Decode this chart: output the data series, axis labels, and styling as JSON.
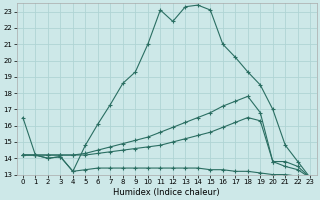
{
  "xlabel": "Humidex (Indice chaleur)",
  "background_color": "#cde8e8",
  "grid_color": "#b0d4d4",
  "line_color": "#2a6e62",
  "xlim": [
    -0.5,
    23.5
  ],
  "ylim": [
    13,
    23.5
  ],
  "xticks": [
    0,
    1,
    2,
    3,
    4,
    5,
    6,
    7,
    8,
    9,
    10,
    11,
    12,
    13,
    14,
    15,
    16,
    17,
    18,
    19,
    20,
    21,
    22,
    23
  ],
  "yticks": [
    13,
    14,
    15,
    16,
    17,
    18,
    19,
    20,
    21,
    22,
    23
  ],
  "line1_x": [
    0,
    1,
    2,
    3,
    4,
    5,
    6,
    7,
    8,
    9,
    10,
    11,
    12,
    13,
    14,
    15,
    16,
    17,
    18,
    19,
    20,
    21,
    22,
    23
  ],
  "line1_y": [
    16.5,
    14.2,
    14.0,
    14.1,
    13.2,
    14.8,
    16.1,
    17.3,
    18.6,
    19.3,
    21.0,
    23.1,
    22.4,
    23.3,
    23.4,
    23.1,
    21.0,
    20.2,
    19.3,
    18.5,
    17.0,
    14.8,
    13.8,
    12.8
  ],
  "line2_x": [
    0,
    1,
    2,
    3,
    4,
    5,
    6,
    7,
    8,
    9,
    10,
    11,
    12,
    13,
    14,
    15,
    16,
    17,
    18,
    19,
    20,
    21,
    22,
    23
  ],
  "line2_y": [
    14.2,
    14.2,
    14.2,
    14.2,
    14.2,
    14.3,
    14.5,
    14.7,
    14.9,
    15.1,
    15.3,
    15.6,
    15.9,
    16.2,
    16.5,
    16.8,
    17.2,
    17.5,
    17.8,
    16.8,
    13.8,
    13.8,
    13.5,
    12.8
  ],
  "line3_x": [
    0,
    1,
    2,
    3,
    4,
    5,
    6,
    7,
    8,
    9,
    10,
    11,
    12,
    13,
    14,
    15,
    16,
    17,
    18,
    19,
    20,
    21,
    22,
    23
  ],
  "line3_y": [
    14.2,
    14.2,
    14.2,
    14.2,
    14.2,
    14.2,
    14.3,
    14.4,
    14.5,
    14.6,
    14.7,
    14.8,
    15.0,
    15.2,
    15.4,
    15.6,
    15.9,
    16.2,
    16.5,
    16.3,
    13.8,
    13.5,
    13.3,
    12.8
  ],
  "line4_x": [
    0,
    1,
    2,
    3,
    4,
    5,
    6,
    7,
    8,
    9,
    10,
    11,
    12,
    13,
    14,
    15,
    16,
    17,
    18,
    19,
    20,
    21,
    22,
    23
  ],
  "line4_y": [
    14.2,
    14.2,
    14.0,
    14.1,
    13.2,
    13.3,
    13.4,
    13.4,
    13.4,
    13.4,
    13.4,
    13.4,
    13.4,
    13.4,
    13.4,
    13.3,
    13.3,
    13.2,
    13.2,
    13.1,
    13.0,
    13.0,
    12.9,
    12.8
  ]
}
